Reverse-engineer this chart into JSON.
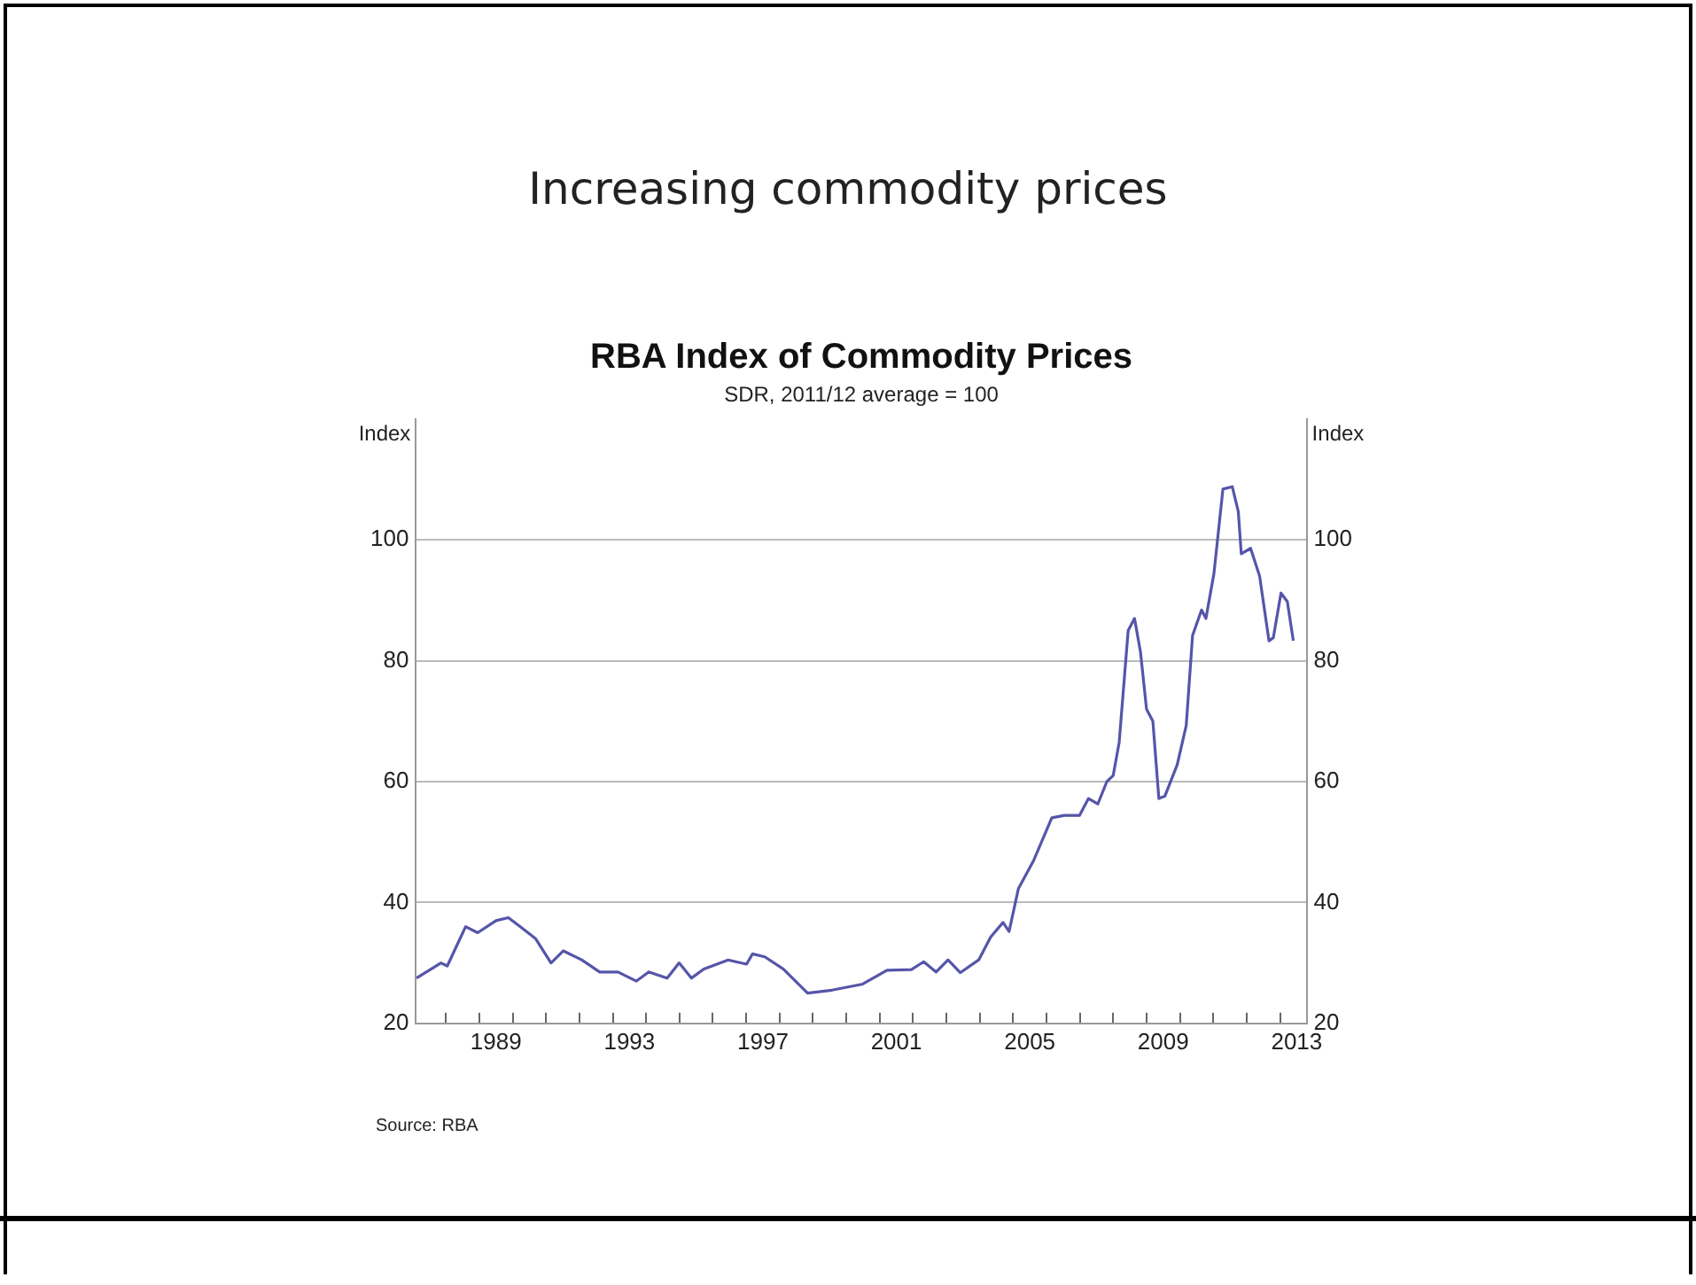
{
  "chart_data": {
    "type": "line",
    "title": "RBA Index of Commodity Prices",
    "subtitle": "SDR, 2011/12 average = 100",
    "ylabel": "Index",
    "y2label": "Index",
    "annotations": [
      "Increasing commodity prices",
      "Source: RBA"
    ],
    "series": [
      {
        "color": "#5555aa",
        "x": [
          1987.12,
          1987.85,
          1988.04,
          1988.59,
          1988.95,
          1989.5,
          1989.87,
          1990.23,
          1990.69,
          1991.15,
          1991.52,
          1992.07,
          1992.61,
          1993.16,
          1993.71,
          1994.08,
          1994.63,
          1994.99,
          1995.36,
          1995.73,
          1996.46,
          1997.01,
          1997.19,
          1997.56,
          1998.11,
          1998.84,
          1999.57,
          2000.49,
          2001.22,
          2001.95,
          2002.32,
          2002.69,
          2003.05,
          2003.42,
          2003.97,
          2004.33,
          2004.7,
          2004.88,
          2005.16,
          2005.62,
          2006.16,
          2006.53,
          2006.99,
          2007.26,
          2007.54,
          2007.81,
          2008.0,
          2008.18,
          2008.45,
          2008.64,
          2008.82,
          2009.0,
          2009.19,
          2009.37,
          2009.55,
          2009.92,
          2010.19,
          2010.38,
          2010.65,
          2010.78,
          2011.02,
          2011.29,
          2011.57,
          2011.75,
          2011.84,
          2012.12,
          2012.39,
          2012.67,
          2012.8,
          2013.03,
          2013.22,
          2013.4
        ],
        "values": [
          27.5,
          30,
          29.5,
          36,
          35,
          37,
          37.5,
          36,
          34,
          30,
          32,
          30.5,
          28.5,
          28.5,
          27,
          28.5,
          27.5,
          30,
          27.5,
          29,
          30.5,
          29.8,
          31.5,
          31,
          29,
          25,
          25.5,
          26.5,
          28.8,
          28.9,
          30.2,
          28.5,
          30.5,
          28.4,
          30.5,
          34.3,
          36.7,
          35.2,
          42.3,
          47,
          54,
          54.4,
          54.4,
          57.2,
          56.3,
          60,
          61,
          66.5,
          85,
          87,
          81.4,
          72,
          70,
          57.2,
          57.6,
          62.8,
          69.3,
          84.2,
          88.4,
          87,
          94.4,
          108.4,
          108.8,
          104.7,
          97.7,
          98.6,
          94,
          83.3,
          83.8,
          91.2,
          89.8,
          83.3
        ]
      }
    ],
    "xlim": [
      1987.1,
      2013.8
    ],
    "xticks": [
      {
        "value": 1988,
        "label": null
      },
      {
        "value": 1989,
        "label": null
      },
      {
        "value": 1989.5,
        "label": "1989"
      },
      {
        "value": 1990,
        "label": null
      },
      {
        "value": 1991,
        "label": null
      },
      {
        "value": 1992,
        "label": null
      },
      {
        "value": 1993,
        "label": null
      },
      {
        "value": 1993.5,
        "label": "1993"
      },
      {
        "value": 1994,
        "label": null
      },
      {
        "value": 1995,
        "label": null
      },
      {
        "value": 1996,
        "label": null
      },
      {
        "value": 1997,
        "label": null
      },
      {
        "value": 1997.5,
        "label": "1997"
      },
      {
        "value": 1998,
        "label": null
      },
      {
        "value": 1999,
        "label": null
      },
      {
        "value": 2000,
        "label": null
      },
      {
        "value": 2001,
        "label": null
      },
      {
        "value": 2001.5,
        "label": "2001"
      },
      {
        "value": 2002,
        "label": null
      },
      {
        "value": 2003,
        "label": null
      },
      {
        "value": 2004,
        "label": null
      },
      {
        "value": 2005,
        "label": null
      },
      {
        "value": 2005.5,
        "label": "2005"
      },
      {
        "value": 2006,
        "label": null
      },
      {
        "value": 2007,
        "label": null
      },
      {
        "value": 2008,
        "label": null
      },
      {
        "value": 2009,
        "label": null
      },
      {
        "value": 2009.5,
        "label": "2009"
      },
      {
        "value": 2010,
        "label": null
      },
      {
        "value": 2011,
        "label": null
      },
      {
        "value": 2012,
        "label": null
      },
      {
        "value": 2013,
        "label": null
      },
      {
        "value": 2013.5,
        "label": "2013"
      }
    ],
    "ylim": [
      20,
      120
    ],
    "yticks": [
      20,
      40,
      60,
      80,
      100
    ],
    "y2lim": [
      20,
      120
    ],
    "y2ticks": [
      20,
      40,
      60,
      80,
      100
    ],
    "grid": "y",
    "legend": false,
    "marker": "none",
    "line_style": "solid"
  }
}
